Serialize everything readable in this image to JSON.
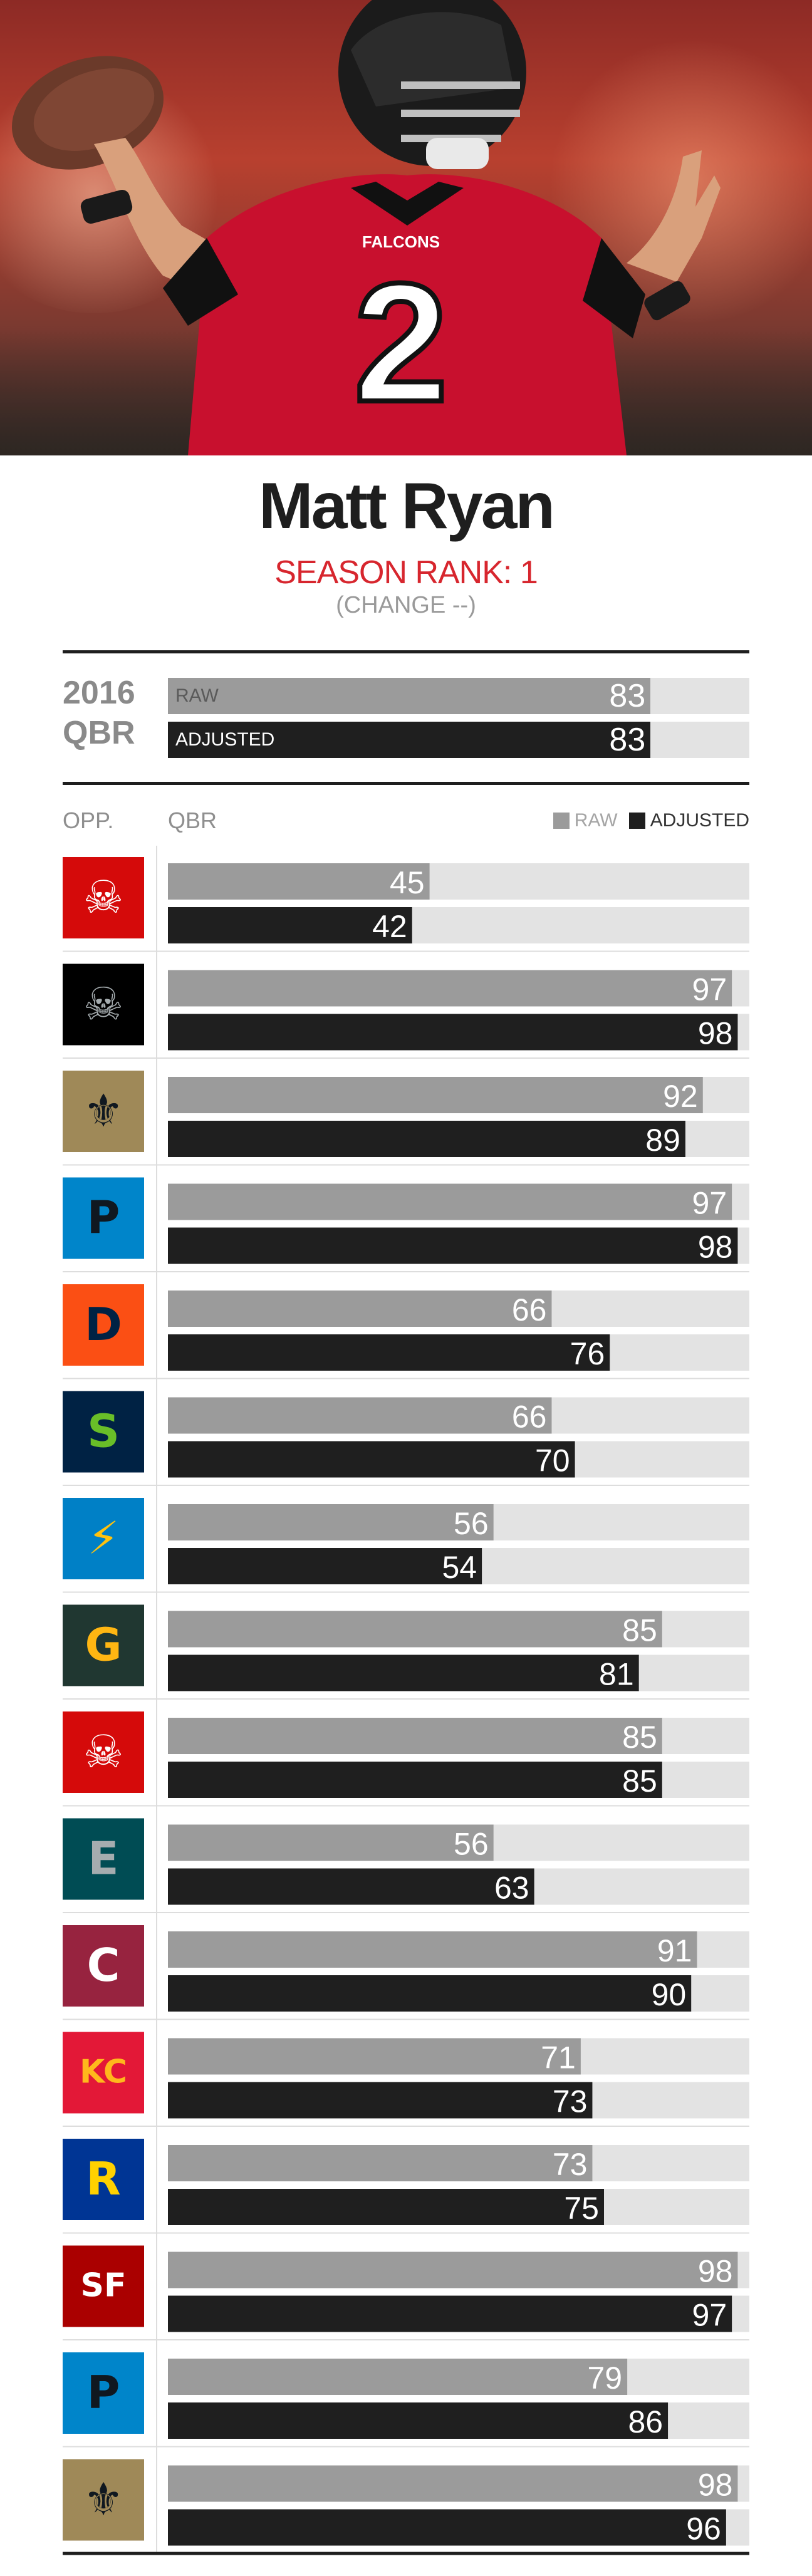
{
  "player": {
    "name": "Matt Ryan",
    "season_rank": "SEASON RANK: 1",
    "rank_change": "(CHANGE --)"
  },
  "hero": {
    "jersey_number": "2",
    "jersey_wordmark": "FALCONS"
  },
  "summary": {
    "year": "2016",
    "metric": "QBR",
    "raw_label": "RAW",
    "adjusted_label": "ADJUSTED",
    "raw_value": 83,
    "adjusted_value": 83
  },
  "table_headers": {
    "opponent": "OPP.",
    "qbr": "QBR"
  },
  "legend": {
    "raw": "RAW",
    "adjusted": "ADJUSTED"
  },
  "colors": {
    "raw": "#9b9b9b",
    "adjusted": "#1f1f1f",
    "track": "#e3e3e3",
    "accent_red": "#d7262e"
  },
  "chart_data": {
    "type": "bar",
    "title": "",
    "xlabel": "",
    "ylabel": "QBR",
    "xlim": [
      0,
      100
    ],
    "categories": [
      "Buccaneers",
      "Raiders",
      "Saints",
      "Panthers",
      "Broncos",
      "Seahawks",
      "Chargers",
      "Packers",
      "Buccaneers",
      "Eagles",
      "Cardinals",
      "Chiefs",
      "Rams",
      "49ers",
      "Panthers",
      "Saints"
    ],
    "series": [
      {
        "name": "RAW",
        "values": [
          45,
          97,
          92,
          97,
          66,
          66,
          56,
          85,
          85,
          56,
          91,
          71,
          73,
          98,
          79,
          98
        ]
      },
      {
        "name": "ADJUSTED",
        "values": [
          42,
          98,
          89,
          98,
          76,
          70,
          54,
          81,
          85,
          63,
          90,
          73,
          75,
          97,
          86,
          96
        ]
      }
    ]
  },
  "team_logos": [
    {
      "icon": "buccaneers-logo-icon",
      "bg": "#d50a0a",
      "fg": "#ffffff",
      "mark": "☠"
    },
    {
      "icon": "raiders-logo-icon",
      "bg": "#000000",
      "fg": "#a5acaf",
      "mark": "☠"
    },
    {
      "icon": "saints-logo-icon",
      "bg": "#9f8958",
      "fg": "#101820",
      "mark": "⚜"
    },
    {
      "icon": "panthers-logo-icon",
      "bg": "#0085ca",
      "fg": "#101820",
      "mark": "P"
    },
    {
      "icon": "broncos-logo-icon",
      "bg": "#fb4f14",
      "fg": "#002244",
      "mark": "D"
    },
    {
      "icon": "seahawks-logo-icon",
      "bg": "#002244",
      "fg": "#69be28",
      "mark": "S"
    },
    {
      "icon": "chargers-logo-icon",
      "bg": "#0080c6",
      "fg": "#ffc20e",
      "mark": "⚡"
    },
    {
      "icon": "packers-logo-icon",
      "bg": "#203731",
      "fg": "#ffb612",
      "mark": "G"
    },
    {
      "icon": "buccaneers-logo-icon",
      "bg": "#d50a0a",
      "fg": "#ffffff",
      "mark": "☠"
    },
    {
      "icon": "eagles-logo-icon",
      "bg": "#004c54",
      "fg": "#a5acaf",
      "mark": "E"
    },
    {
      "icon": "cardinals-logo-icon",
      "bg": "#97233f",
      "fg": "#ffffff",
      "mark": "C"
    },
    {
      "icon": "chiefs-logo-icon",
      "bg": "#e31837",
      "fg": "#ffb81c",
      "mark": "KC"
    },
    {
      "icon": "rams-logo-icon",
      "bg": "#003594",
      "fg": "#ffd100",
      "mark": "R"
    },
    {
      "icon": "49ers-logo-icon",
      "bg": "#aa0000",
      "fg": "#ffffff",
      "mark": "SF"
    },
    {
      "icon": "panthers-logo-icon",
      "bg": "#0085ca",
      "fg": "#101820",
      "mark": "P"
    },
    {
      "icon": "saints-logo-icon",
      "bg": "#9f8958",
      "fg": "#101820",
      "mark": "⚜"
    }
  ]
}
